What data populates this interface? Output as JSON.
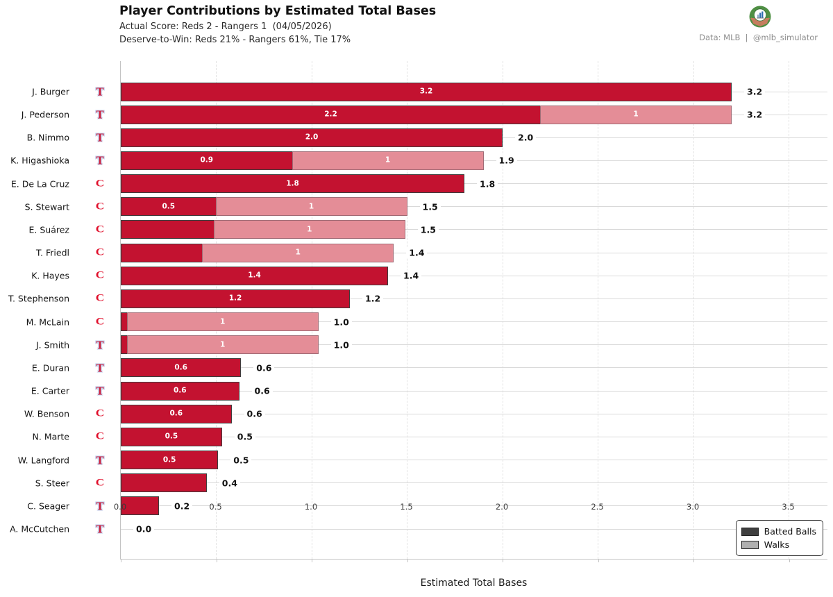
{
  "header": {
    "title": "Player Contributions by Estimated Total Bases",
    "subtitle1": "Actual Score: Reds 2 - Rangers 1  (04/05/2026)",
    "subtitle2": "Deserve-to-Win: Reds 21% - Rangers 61%, Tie 17%",
    "attribution": "Data: MLB  |  @mlb_simulator"
  },
  "colors": {
    "batted_fill": "#c31230",
    "walks_fill": "#e48d97",
    "batted_edge": "#3d3d3d",
    "walks_edge": "#a06b75",
    "rangers_icon": "#cf1f3a",
    "reds_icon": "#e0102c",
    "legend_batted_swatch": "#3f3f3f",
    "legend_walks_swatch": "#b0b0b0"
  },
  "team_icons": {
    "rangers": "T",
    "reds": "C"
  },
  "legend": {
    "items": [
      {
        "label": "Batted Balls",
        "series": "batted"
      },
      {
        "label": "Walks",
        "series": "walks"
      }
    ]
  },
  "chart_data": {
    "type": "bar",
    "orientation": "horizontal",
    "stacked": true,
    "title": "Player Contributions by Estimated Total Bases",
    "xlabel": "Estimated Total Bases",
    "xlim": [
      0,
      3.7
    ],
    "x_ticks": [
      "0.0",
      "0.5",
      "1.0",
      "1.5",
      "2.0",
      "2.5",
      "3.0",
      "3.5"
    ],
    "grid": "vertical-dashed, per-row horizontal lines",
    "legend_position": "lower right",
    "series_names": [
      "Batted Balls",
      "Walks"
    ],
    "players": [
      {
        "name": "J. Burger",
        "team": "rangers",
        "batted": 3.2,
        "batted_label": "3.2",
        "walks": 0,
        "walks_label": "",
        "total": "3.2"
      },
      {
        "name": "J. Pederson",
        "team": "rangers",
        "batted": 2.2,
        "batted_label": "2.2",
        "walks": 1,
        "walks_label": "1",
        "total": "3.2"
      },
      {
        "name": "B. Nimmo",
        "team": "rangers",
        "batted": 2.0,
        "batted_label": "2.0",
        "walks": 0,
        "walks_label": "",
        "total": "2.0"
      },
      {
        "name": "K. Higashioka",
        "team": "rangers",
        "batted": 0.9,
        "batted_label": "0.9",
        "walks": 1,
        "walks_label": "1",
        "total": "1.9"
      },
      {
        "name": "E. De La Cruz",
        "team": "reds",
        "batted": 1.8,
        "batted_label": "1.8",
        "walks": 0,
        "walks_label": "",
        "total": "1.8"
      },
      {
        "name": "S. Stewart",
        "team": "reds",
        "batted": 0.5,
        "batted_label": "0.5",
        "walks": 1,
        "walks_label": "1",
        "total": "1.5"
      },
      {
        "name": "E. Suárez",
        "team": "reds",
        "batted": 0.49,
        "batted_label": "",
        "walks": 1,
        "walks_label": "1",
        "total": "1.5"
      },
      {
        "name": "T. Friedl",
        "team": "reds",
        "batted": 0.43,
        "batted_label": "",
        "walks": 1,
        "walks_label": "1",
        "total": "1.4"
      },
      {
        "name": "K. Hayes",
        "team": "reds",
        "batted": 1.4,
        "batted_label": "1.4",
        "walks": 0,
        "walks_label": "",
        "total": "1.4"
      },
      {
        "name": "T. Stephenson",
        "team": "reds",
        "batted": 1.2,
        "batted_label": "1.2",
        "walks": 0,
        "walks_label": "",
        "total": "1.2"
      },
      {
        "name": "M. McLain",
        "team": "reds",
        "batted": 0.035,
        "batted_label": "",
        "walks": 1,
        "walks_label": "1",
        "total": "1.0"
      },
      {
        "name": "J. Smith",
        "team": "rangers",
        "batted": 0.035,
        "batted_label": "",
        "walks": 1,
        "walks_label": "1",
        "total": "1.0"
      },
      {
        "name": "E. Duran",
        "team": "rangers",
        "batted": 0.63,
        "batted_label": "0.6",
        "walks": 0,
        "walks_label": "",
        "total": "0.6"
      },
      {
        "name": "E. Carter",
        "team": "rangers",
        "batted": 0.62,
        "batted_label": "0.6",
        "walks": 0,
        "walks_label": "",
        "total": "0.6"
      },
      {
        "name": "W. Benson",
        "team": "reds",
        "batted": 0.58,
        "batted_label": "0.6",
        "walks": 0,
        "walks_label": "",
        "total": "0.6"
      },
      {
        "name": "N. Marte",
        "team": "reds",
        "batted": 0.53,
        "batted_label": "0.5",
        "walks": 0,
        "walks_label": "",
        "total": "0.5"
      },
      {
        "name": "W. Langford",
        "team": "rangers",
        "batted": 0.51,
        "batted_label": "0.5",
        "walks": 0,
        "walks_label": "",
        "total": "0.5"
      },
      {
        "name": "S. Steer",
        "team": "reds",
        "batted": 0.45,
        "batted_label": "",
        "walks": 0,
        "walks_label": "",
        "total": "0.4"
      },
      {
        "name": "C. Seager",
        "team": "rangers",
        "batted": 0.2,
        "batted_label": "",
        "walks": 0,
        "walks_label": "",
        "total": "0.2"
      },
      {
        "name": "A. McCutchen",
        "team": "rangers",
        "batted": 0,
        "batted_label": "",
        "walks": 0,
        "walks_label": "",
        "total": "0.0"
      }
    ]
  }
}
